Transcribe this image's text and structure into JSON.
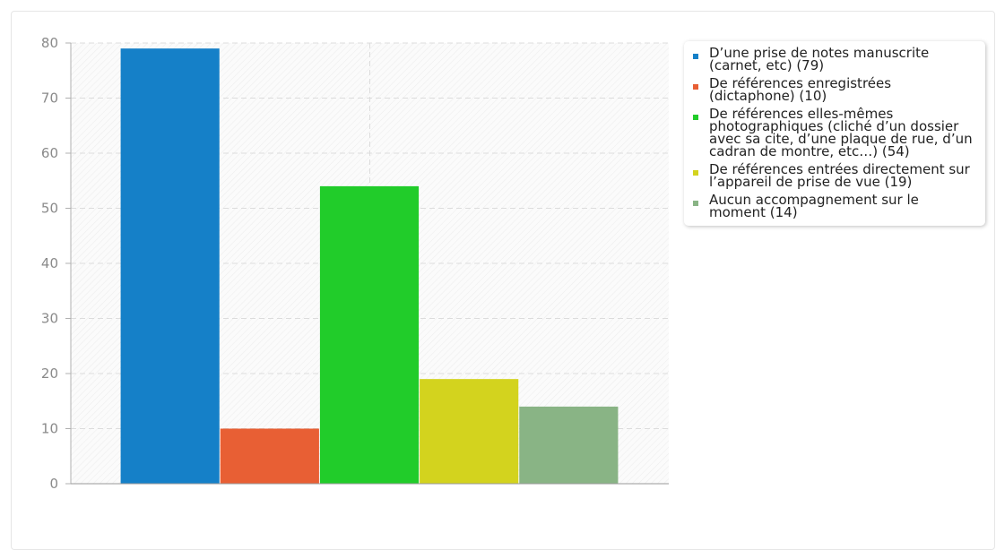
{
  "chart_data": {
    "type": "bar",
    "title": "",
    "xlabel": "",
    "ylabel": "",
    "ylim": [
      0,
      80
    ],
    "yticks": [
      0,
      10,
      20,
      30,
      40,
      50,
      60,
      70,
      80
    ],
    "grid": true,
    "legend_position": "right",
    "series": [
      {
        "name": "D’une prise de notes manuscrite (carnet, etc) (79)",
        "value": 79,
        "color": "#1580c8"
      },
      {
        "name": "De références enregistrées (dictaphone) (10)",
        "value": 10,
        "color": "#e85f34"
      },
      {
        "name": "De références elles-mêmes photographiques (cliché d’un dossier avec sa cite, d’une plaque de rue, d’un cadran de montre, etc…) (54)",
        "value": 54,
        "color": "#21cc2a"
      },
      {
        "name": "De références entrées directement sur l’appareil de prise de vue (19)",
        "value": 19,
        "color": "#d3d31e"
      },
      {
        "name": "Aucun accompagnement sur le moment (14)",
        "value": 14,
        "color": "#89b485"
      }
    ]
  }
}
